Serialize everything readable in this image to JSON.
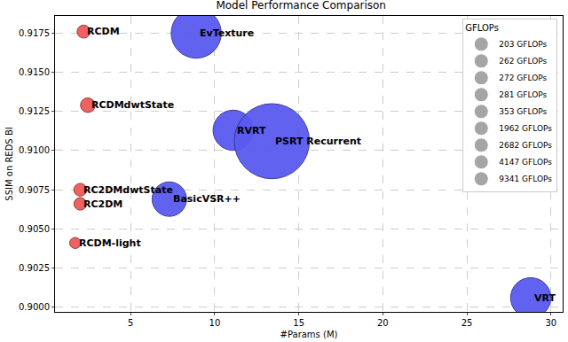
{
  "chart_data": {
    "type": "scatter",
    "title": "Model Performance Comparison",
    "x_label": "#Params (M)",
    "y_label": "SSIM on REDS BI",
    "labels": [
      "RCDM",
      "RCDMdwtState",
      "RC2DMdwtState",
      "RC2DM",
      "RCDM-light",
      "EvTexture",
      "RVRT",
      "PSRT Recurrent",
      "BasicVSR++",
      "VRT"
    ],
    "x": [
      2.2,
      2.45,
      2.0,
      2.0,
      1.7,
      8.9,
      11.1,
      13.4,
      7.3,
      28.8
    ],
    "values": [
      0.9176,
      0.9129,
      0.9075,
      0.9066,
      0.9041,
      0.9175,
      0.9113,
      0.9106,
      0.9069,
      0.9006
    ],
    "sizes": [
      281,
      353,
      272,
      262,
      203,
      4147,
      2682,
      9341,
      1962,
      2682
    ],
    "colors": [
      "#f05a5a",
      "#f05a5a",
      "#f05a5a",
      "#f05a5a",
      "#f05a5a",
      "#5a5af0",
      "#5a5af0",
      "#5a5af0",
      "#5a5af0",
      "#5a5af0"
    ],
    "size_legend_title": "GFLOPs",
    "size_legend": [
      {
        "value": 203,
        "label": "203 GFLOPs"
      },
      {
        "value": 262,
        "label": "262 GFLOPs"
      },
      {
        "value": 272,
        "label": "272 GFLOPs"
      },
      {
        "value": 281,
        "label": "281 GFLOPs"
      },
      {
        "value": 353,
        "label": "353 GFLOPs"
      },
      {
        "value": 1962,
        "label": "1962 GFLOPs"
      },
      {
        "value": 2682,
        "label": "2682 GFLOPs"
      },
      {
        "value": 4147,
        "label": "4147 GFLOPs"
      },
      {
        "value": 9341,
        "label": "9341 GFLOPs"
      }
    ],
    "size_legend_color": "#808080",
    "xlim": [
      0.5,
      30.7
    ],
    "xticks": [
      5,
      10,
      15,
      20,
      25,
      30
    ],
    "ylim": [
      0.8997,
      0.9186
    ],
    "yticks": [
      {
        "value": 0.9,
        "label": "0.9000"
      },
      {
        "value": 0.9025,
        "label": "0.9025"
      },
      {
        "value": 0.905,
        "label": "0.9050"
      },
      {
        "value": 0.9075,
        "label": "0.9075"
      },
      {
        "value": 0.91,
        "label": "0.9100"
      },
      {
        "value": 0.9125,
        "label": "0.9125"
      },
      {
        "value": 0.915,
        "label": "0.9150"
      },
      {
        "value": 0.9175,
        "label": "0.9175"
      }
    ],
    "grid": true,
    "legend": "upper right",
    "marker": "circle"
  }
}
